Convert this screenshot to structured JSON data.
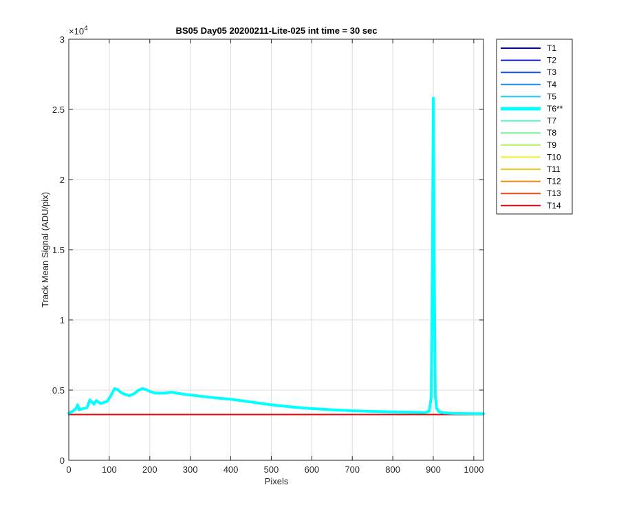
{
  "chart_data": {
    "type": "line",
    "title": "BS05 Day05 20200211-Lite-025 int time = 30 sec",
    "xlabel": "Pixels",
    "ylabel": "Track Mean Signal (ADU/pix)",
    "y_exponent_label": "×10",
    "y_exponent_power": "4",
    "xlim": [
      0,
      1024
    ],
    "ylim": [
      0,
      30000
    ],
    "x_ticks": [
      0,
      100,
      200,
      300,
      400,
      500,
      600,
      700,
      800,
      900,
      1000
    ],
    "x_tick_labels": [
      "0",
      "100",
      "200",
      "300",
      "400",
      "500",
      "600",
      "700",
      "800",
      "900",
      "1000"
    ],
    "y_ticks": [
      0,
      5000,
      10000,
      15000,
      20000,
      25000,
      30000
    ],
    "y_tick_labels": [
      "0",
      "0.5",
      "1",
      "1.5",
      "2",
      "2.5",
      "3"
    ],
    "grid": true,
    "legend_position": "outside-right",
    "series": [
      {
        "name": "T1",
        "color": "#0000c8",
        "width": 2,
        "x": [
          0,
          1024
        ],
        "y": [
          3260,
          3260
        ]
      },
      {
        "name": "T2",
        "color": "#0a1ee0",
        "width": 2,
        "x": [
          0,
          1024
        ],
        "y": [
          3260,
          3260
        ]
      },
      {
        "name": "T3",
        "color": "#1450e6",
        "width": 2,
        "x": [
          0,
          1024
        ],
        "y": [
          3260,
          3260
        ]
      },
      {
        "name": "T4",
        "color": "#1e8ce6",
        "width": 2,
        "x": [
          0,
          1024
        ],
        "y": [
          3260,
          3260
        ]
      },
      {
        "name": "T5",
        "color": "#1ec8f0",
        "width": 2,
        "x": [
          0,
          1024
        ],
        "y": [
          3260,
          3260
        ]
      },
      {
        "name": "T7",
        "color": "#50f0c8",
        "width": 2,
        "x": [
          0,
          1024
        ],
        "y": [
          3260,
          3260
        ]
      },
      {
        "name": "T8",
        "color": "#78f096",
        "width": 2,
        "x": [
          0,
          1024
        ],
        "y": [
          3260,
          3260
        ]
      },
      {
        "name": "T9",
        "color": "#b4f05a",
        "width": 2,
        "x": [
          0,
          1024
        ],
        "y": [
          3260,
          3260
        ]
      },
      {
        "name": "T10",
        "color": "#f0f028",
        "width": 2,
        "x": [
          0,
          1024
        ],
        "y": [
          3260,
          3260
        ]
      },
      {
        "name": "T11",
        "color": "#f0c814",
        "width": 2,
        "x": [
          0,
          1024
        ],
        "y": [
          3260,
          3260
        ]
      },
      {
        "name": "T12",
        "color": "#f08c14",
        "width": 2,
        "x": [
          0,
          1024
        ],
        "y": [
          3260,
          3260
        ]
      },
      {
        "name": "T13",
        "color": "#f04614",
        "width": 2,
        "x": [
          0,
          1024
        ],
        "y": [
          3260,
          3260
        ]
      },
      {
        "name": "T14",
        "color": "#dc0a0a",
        "width": 2,
        "x": [
          0,
          1024
        ],
        "y": [
          3260,
          3260
        ]
      },
      {
        "name": "T6**",
        "color": "#00ffff",
        "width": 4,
        "x": [
          0,
          10,
          18,
          22,
          26,
          32,
          45,
          52,
          57,
          62,
          68,
          73,
          78,
          85,
          95,
          105,
          113,
          120,
          128,
          138,
          150,
          162,
          172,
          182,
          190,
          200,
          212,
          225,
          240,
          255,
          265,
          280,
          300,
          330,
          360,
          400,
          450,
          500,
          550,
          600,
          650,
          700,
          750,
          800,
          850,
          880,
          890,
          895,
          898,
          900,
          902,
          905,
          908,
          915,
          925,
          950,
          1000,
          1024
        ],
        "y": [
          3350,
          3500,
          3700,
          3950,
          3600,
          3650,
          3750,
          4300,
          4150,
          4000,
          4250,
          4150,
          4050,
          4100,
          4200,
          4650,
          5100,
          5050,
          4850,
          4700,
          4600,
          4750,
          5000,
          5100,
          5050,
          4900,
          4800,
          4780,
          4800,
          4850,
          4800,
          4720,
          4650,
          4550,
          4450,
          4350,
          4150,
          3950,
          3800,
          3680,
          3600,
          3530,
          3480,
          3440,
          3420,
          3400,
          3500,
          4500,
          15000,
          25800,
          15000,
          4600,
          3700,
          3450,
          3380,
          3340,
          3320,
          3320
        ]
      }
    ],
    "legend_entries": [
      {
        "label": "T1",
        "color": "#0000c8",
        "width": 2
      },
      {
        "label": "T2",
        "color": "#0a1ee0",
        "width": 2
      },
      {
        "label": "T3",
        "color": "#1450e6",
        "width": 2
      },
      {
        "label": "T4",
        "color": "#1e8ce6",
        "width": 2
      },
      {
        "label": "T5",
        "color": "#1ec8f0",
        "width": 2
      },
      {
        "label": "T6**",
        "color": "#00ffff",
        "width": 5
      },
      {
        "label": "T7",
        "color": "#50f0c8",
        "width": 2
      },
      {
        "label": "T8",
        "color": "#78f096",
        "width": 2
      },
      {
        "label": "T9",
        "color": "#b4f05a",
        "width": 2
      },
      {
        "label": "T10",
        "color": "#f0f028",
        "width": 2
      },
      {
        "label": "T11",
        "color": "#f0c814",
        "width": 2
      },
      {
        "label": "T12",
        "color": "#f08c14",
        "width": 2
      },
      {
        "label": "T13",
        "color": "#f04614",
        "width": 2
      },
      {
        "label": "T14",
        "color": "#dc0a0a",
        "width": 2
      }
    ]
  }
}
